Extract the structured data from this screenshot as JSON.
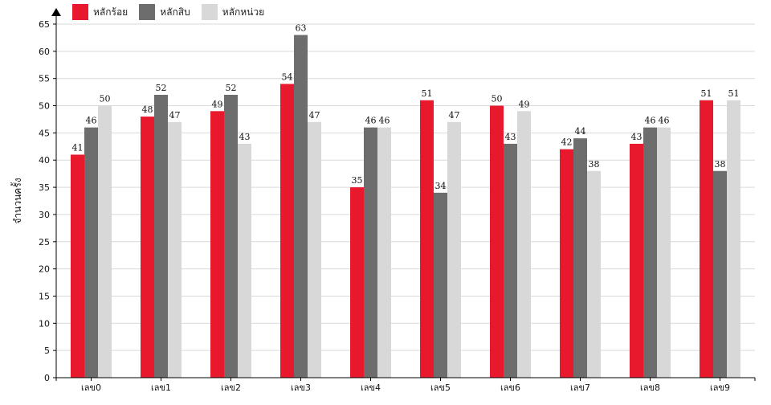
{
  "chart_data": {
    "type": "bar",
    "xlabel": "",
    "ylabel": "จำนวนครั้ง",
    "ylim": [
      0,
      65
    ],
    "ytick_step": 5,
    "grid": true,
    "legend_position": "top-left",
    "categories": [
      "เลข0",
      "เลข1",
      "เลข2",
      "เลข3",
      "เลข4",
      "เลข5",
      "เลข6",
      "เลข7",
      "เลข8",
      "เลข9"
    ],
    "series": [
      {
        "name": "หลักร้อย",
        "color": "#e8192c",
        "values": [
          41,
          48,
          49,
          54,
          35,
          51,
          50,
          42,
          43,
          51
        ]
      },
      {
        "name": "หลักสิบ",
        "color": "#6d6d6d",
        "values": [
          46,
          52,
          52,
          63,
          46,
          34,
          43,
          44,
          46,
          38
        ]
      },
      {
        "name": "หลักหน่วย",
        "color": "#d8d8d8",
        "values": [
          50,
          47,
          43,
          47,
          46,
          47,
          49,
          38,
          46,
          51
        ]
      }
    ]
  }
}
